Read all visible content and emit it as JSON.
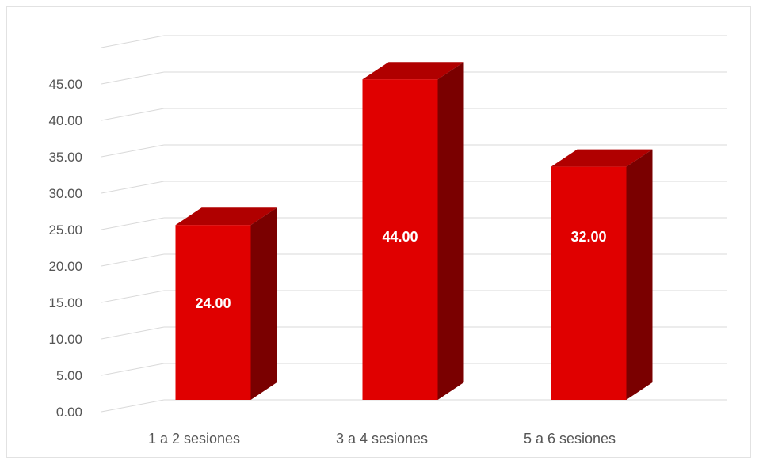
{
  "chart_data": {
    "type": "bar",
    "style": "3d-column",
    "title": "",
    "xlabel": "",
    "ylabel": "",
    "categories": [
      "1 a 2 sesiones",
      "3 a 4 sesiones",
      "5 a 6 sesiones"
    ],
    "values": [
      24.0,
      44.0,
      32.0
    ],
    "data_labels": [
      "24.00",
      "44.00",
      "32.00"
    ],
    "ylim": [
      0,
      45
    ],
    "y_ticks": [
      "0.00",
      "5.00",
      "10.00",
      "15.00",
      "20.00",
      "25.00",
      "30.00",
      "35.00",
      "40.00",
      "45.00"
    ],
    "grid": true,
    "legend": "none",
    "colors": {
      "bar_front": "#e00000",
      "bar_top": "#b00000",
      "bar_side": "#7a0000",
      "grid": "#d9d9d9"
    }
  }
}
